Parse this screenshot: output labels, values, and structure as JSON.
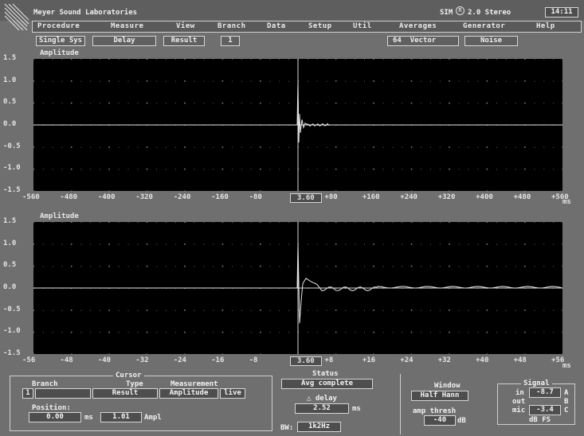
{
  "header": {
    "app_title": "Meyer Sound Laboratories",
    "product": "SIM",
    "version": "2.0 Stereo",
    "clock": "14:11"
  },
  "menu": [
    "Procedure",
    "Measure",
    "View",
    "Branch",
    "Data",
    "Setup",
    "Util",
    "Averages",
    "Generator",
    "Help"
  ],
  "toolbar": {
    "mode": "Single Sys",
    "type": "Delay",
    "result": "Result",
    "index": "1",
    "averages": "64",
    "avg_type": "Vector",
    "source": "Noise"
  },
  "plot_top": {
    "ylabel": "Amplitude",
    "yticks": [
      "1.5",
      "1.0",
      "0.5",
      "0.0",
      "-0.5",
      "-1.0",
      "-1.5"
    ],
    "xticks": [
      "-560",
      "-480",
      "-400",
      "-320",
      "-240",
      "-160",
      "-80",
      "3.60",
      "+80",
      "+160",
      "+240",
      "+320",
      "+400",
      "+480",
      "+560"
    ],
    "xunit": "ms"
  },
  "plot_bottom": {
    "ylabel": "Amplitude",
    "yticks": [
      "1.5",
      "1.0",
      "0.5",
      "0.0",
      "-0.5",
      "-1.0",
      "-1.5"
    ],
    "xticks": [
      "-56",
      "-48",
      "-40",
      "-32",
      "-24",
      "-16",
      "-8",
      "3.60",
      "+8",
      "+16",
      "+24",
      "+32",
      "+40",
      "+48",
      "+56"
    ],
    "xunit": "ms"
  },
  "cursor": {
    "title": "Cursor",
    "branch_label": "Branch",
    "branch_value": "1",
    "type_label": "Type",
    "type_value": "Result",
    "measurement_label": "Measurement",
    "measurement_value": "Amplitude",
    "live": "live",
    "position_label": "Position:",
    "position_value": "0.00",
    "position_unit": "ms",
    "ampl_value": "1.01",
    "ampl_unit": "Ampl"
  },
  "status": {
    "title": "Status",
    "text": "Avg complete",
    "delay_label": "△ delay",
    "delay_value": "2.52",
    "delay_unit": "ms",
    "bw_label": "BW:",
    "bw_value": "1k2Hz"
  },
  "window": {
    "title": "Window",
    "value": "Half Hann",
    "thresh_label": "amp thresh",
    "thresh_value": "-40",
    "thresh_unit": "dB"
  },
  "signal": {
    "title": "Signal",
    "in_label": "in",
    "in_value": "-8.7",
    "in_ch": "A",
    "out_label": "out",
    "out_ch": "B",
    "mic_label": "mic",
    "mic_value": "-3.4",
    "mic_ch": "C",
    "unit": "dB FS"
  },
  "colors": {
    "background": "#6f6f6f",
    "plot_bg": "#000000",
    "trace": "#e6e6e6",
    "grid_dot": "#9a9a9a"
  }
}
